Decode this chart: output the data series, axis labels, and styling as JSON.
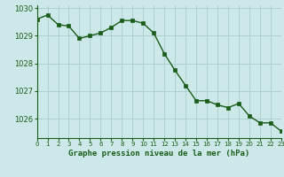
{
  "hours": [
    0,
    1,
    2,
    3,
    4,
    5,
    6,
    7,
    8,
    9,
    10,
    11,
    12,
    13,
    14,
    15,
    16,
    17,
    18,
    19,
    20,
    21,
    22,
    23
  ],
  "pressure": [
    1029.6,
    1029.75,
    1029.4,
    1029.35,
    1028.9,
    1029.0,
    1029.1,
    1029.3,
    1029.55,
    1029.55,
    1029.45,
    1029.1,
    1028.35,
    1027.75,
    1027.2,
    1026.65,
    1026.65,
    1026.5,
    1026.4,
    1026.55,
    1026.1,
    1025.85,
    1025.85,
    1025.55
  ],
  "line_color": "#1a5c1a",
  "marker_color": "#1a5c1a",
  "bg_color": "#cce8e8",
  "grid_color": "#a8cccc",
  "xlabel": "Graphe pression niveau de la mer (hPa)",
  "xlabel_color": "#1a5c1a",
  "tick_color": "#1a5c1a",
  "ylim": [
    1025.3,
    1030.1
  ],
  "yticks": [
    1026,
    1027,
    1028,
    1029,
    1030
  ],
  "figsize": [
    3.2,
    2.0
  ],
  "dpi": 100
}
